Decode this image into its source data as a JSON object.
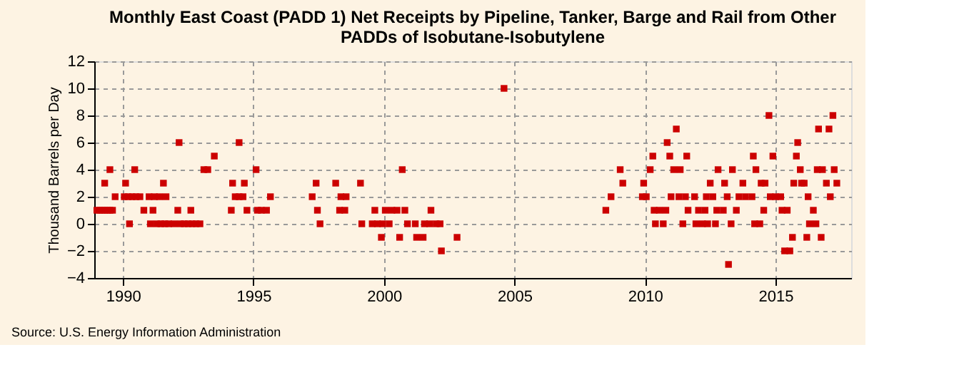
{
  "chart_data": {
    "type": "scatter",
    "title": "Monthly East Coast (PADD 1) Net Receipts by Pipeline, Tanker, Barge and Rail from Other PADDs of Isobutane-Isobutylene",
    "ylabel": "Thousand Barrels per Day",
    "annotations": [
      "Source: U.S. Energy Information Administration"
    ],
    "series": [
      {
        "color": "#cc0000",
        "x": [
          1989.0,
          1989.1,
          1989.2,
          1989.3,
          1989.4,
          1989.5,
          1989.6,
          1989.3,
          1989.5,
          1989.7,
          1990.05,
          1990.2,
          1990.35,
          1990.5,
          1990.65,
          1990.1,
          1990.25,
          1990.45,
          1990.8,
          1991.0,
          1991.2,
          1991.4,
          1991.05,
          1991.15,
          1991.55,
          1991.65,
          1991.3,
          1991.45,
          1991.6,
          1991.75,
          1991.95,
          1992.15,
          1992.1,
          1992.2,
          1992.35,
          1992.5,
          1992.65,
          1992.8,
          1992.95,
          1992.6,
          1993.1,
          1993.25,
          1993.5,
          1994.15,
          1994.2,
          1994.3,
          1994.45,
          1994.6,
          1994.45,
          1994.65,
          1994.75,
          1995.1,
          1995.15,
          1995.3,
          1995.5,
          1995.65,
          1997.25,
          1997.4,
          1997.45,
          1997.55,
          1998.15,
          1998.35,
          1998.55,
          1998.3,
          1998.5,
          1999.1,
          1999.15,
          1999.55,
          1999.65,
          1999.75,
          1999.95,
          1999.9,
          2000.05,
          2000.2,
          2000.3,
          2000.5,
          2000.6,
          2000.7,
          2000.8,
          2000.9,
          2001.2,
          2001.25,
          2001.5,
          2001.55,
          2001.75,
          2001.8,
          2002.0,
          2002.15,
          2002.2,
          2002.8,
          2004.6,
          2008.5,
          2008.7,
          2009.05,
          2009.15,
          2009.9,
          2009.95,
          2010.05,
          2010.2,
          2010.3,
          2010.35,
          2010.4,
          2010.55,
          2010.7,
          2010.8,
          2010.85,
          2010.95,
          2011.0,
          2011.1,
          2011.2,
          2011.3,
          2011.35,
          2011.45,
          2011.55,
          2011.6,
          2011.65,
          2011.9,
          2011.95,
          2012.05,
          2012.2,
          2012.3,
          2012.35,
          2012.4,
          2012.5,
          2012.6,
          2012.7,
          2012.75,
          2012.8,
          2013.0,
          2013.05,
          2013.15,
          2013.2,
          2013.3,
          2013.35,
          2013.5,
          2013.6,
          2013.75,
          2013.85,
          2014.1,
          2014.15,
          2014.2,
          2014.25,
          2014.4,
          2014.45,
          2014.55,
          2014.6,
          2014.75,
          2014.8,
          2014.9,
          2015.0,
          2015.2,
          2015.25,
          2015.35,
          2015.45,
          2015.55,
          2015.65,
          2015.7,
          2015.8,
          2015.85,
          2015.95,
          2016.0,
          2016.1,
          2016.2,
          2016.25,
          2016.3,
          2016.45,
          2016.55,
          2016.6,
          2016.65,
          2016.75,
          2016.8,
          2016.95,
          2017.05,
          2017.1,
          2017.2,
          2017.25,
          2017.35
        ],
        "values": [
          1,
          1,
          1,
          3,
          1,
          4,
          1,
          1,
          1,
          2,
          2,
          2,
          2,
          2,
          2,
          3,
          0,
          4,
          1,
          2,
          2,
          2,
          0,
          1,
          3,
          2,
          0,
          0,
          0,
          0,
          0,
          6,
          1,
          0,
          0,
          0,
          0,
          0,
          0,
          1,
          4,
          4,
          5,
          1,
          3,
          2,
          2,
          2,
          6,
          3,
          1,
          4,
          1,
          1,
          1,
          2,
          2,
          3,
          1,
          0,
          3,
          2,
          2,
          1,
          1,
          3,
          0,
          0,
          1,
          0,
          0,
          -1,
          1,
          0,
          1,
          1,
          -1,
          4,
          1,
          0,
          0,
          -1,
          -1,
          0,
          0,
          1,
          0,
          0,
          -2,
          -1,
          10,
          1,
          2,
          4,
          3,
          2,
          3,
          2,
          4,
          5,
          1,
          0,
          1,
          0,
          1,
          6,
          5,
          2,
          4,
          7,
          2,
          4,
          0,
          2,
          5,
          1,
          2,
          0,
          1,
          0,
          1,
          2,
          0,
          3,
          2,
          0,
          1,
          4,
          1,
          3,
          2,
          -3,
          0,
          4,
          1,
          2,
          3,
          2,
          2,
          5,
          0,
          4,
          0,
          3,
          1,
          3,
          8,
          2,
          5,
          2,
          2,
          1,
          -2,
          1,
          -2,
          -1,
          3,
          5,
          6,
          4,
          3,
          3,
          -1,
          2,
          0,
          1,
          0,
          4,
          7,
          -1,
          4,
          3,
          7,
          2,
          8,
          4,
          3
        ]
      }
    ],
    "xlim": [
      1988.9,
      2017.9
    ],
    "xticks": [
      1990,
      1995,
      2000,
      2005,
      2010,
      2015
    ],
    "ylim": [
      -4,
      12
    ],
    "yticks": [
      -4,
      -2,
      0,
      2,
      4,
      6,
      8,
      10,
      12
    ],
    "grid": true,
    "marker": "square"
  }
}
